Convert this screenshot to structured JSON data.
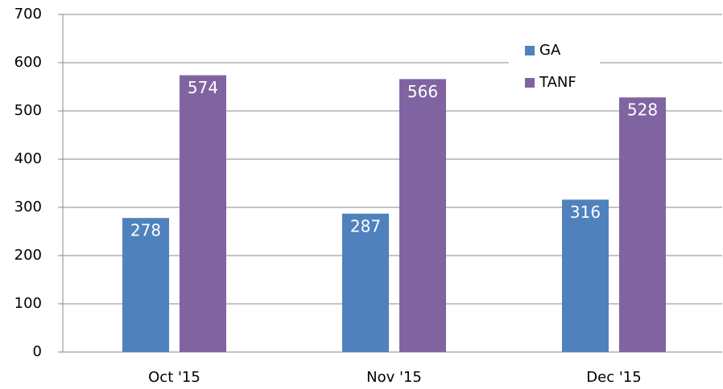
{
  "chart_data": {
    "type": "bar",
    "categories": [
      "Oct '15",
      "Nov '15",
      "Dec '15"
    ],
    "series": [
      {
        "name": "GA",
        "color": "#4f81bd",
        "values": [
          278,
          287,
          316
        ]
      },
      {
        "name": "TANF",
        "color": "#8064a2",
        "values": [
          574,
          566,
          528
        ]
      }
    ],
    "ylim": [
      0,
      700
    ],
    "yticks": [
      0,
      100,
      200,
      300,
      400,
      500,
      600,
      700
    ],
    "grid": true,
    "legend": "top-right"
  }
}
